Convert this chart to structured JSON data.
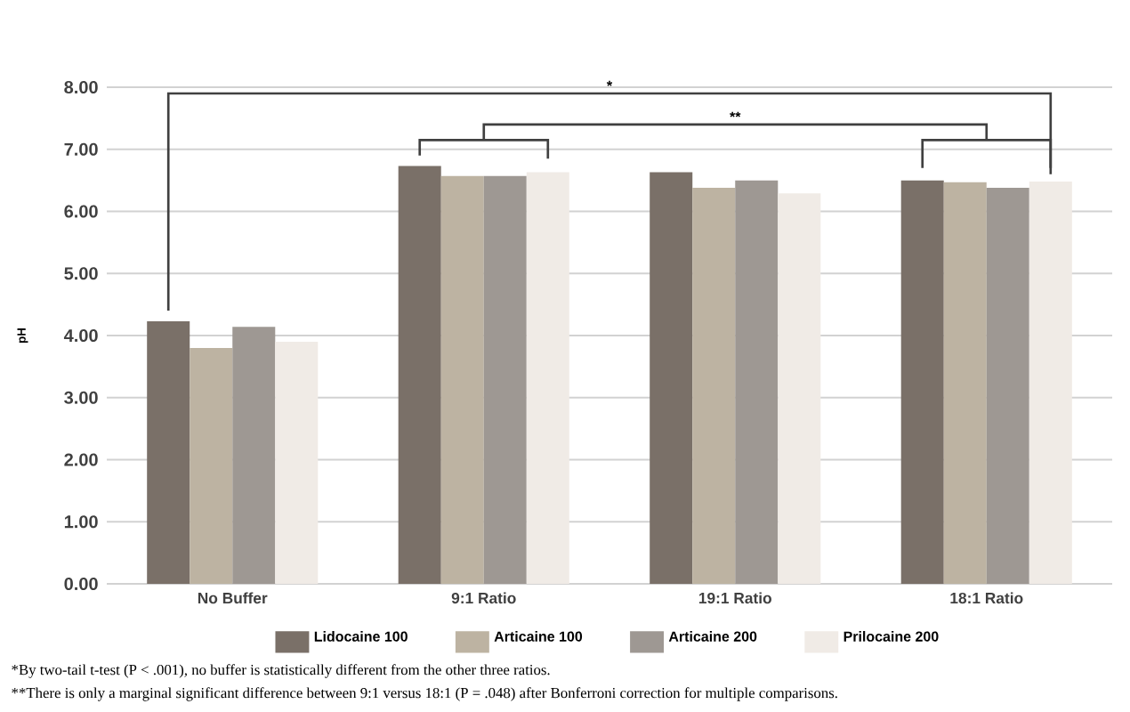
{
  "chart_data": {
    "type": "bar",
    "ylabel": "pH",
    "categories": [
      "No Buffer",
      "9:1 Ratio",
      "19:1 Ratio",
      "18:1 Ratio"
    ],
    "series": [
      {
        "name": "Lidocaine 100",
        "color": "#7a7068",
        "values": [
          4.23,
          6.73,
          6.63,
          6.5
        ]
      },
      {
        "name": "Articaine 100",
        "color": "#bdb3a2",
        "values": [
          3.8,
          6.57,
          6.38,
          6.47
        ]
      },
      {
        "name": "Articaine 200",
        "color": "#9e9893",
        "values": [
          4.14,
          6.57,
          6.5,
          6.38
        ]
      },
      {
        "name": "Prilocaine 200",
        "color": "#f0ebe6",
        "values": [
          3.9,
          6.63,
          6.29,
          6.48
        ]
      }
    ],
    "ylim": [
      0,
      8
    ],
    "yticks": [
      {
        "value": 0,
        "label": "0.00"
      },
      {
        "value": 1,
        "label": "1.00"
      },
      {
        "value": 2,
        "label": "2.00"
      },
      {
        "value": 3,
        "label": "3.00"
      },
      {
        "value": 4,
        "label": "4.00"
      },
      {
        "value": 5,
        "label": "5.00"
      },
      {
        "value": 6,
        "label": "6.00"
      },
      {
        "value": 7,
        "label": "7.00"
      },
      {
        "value": 8,
        "label": "8.00"
      }
    ],
    "grid": "y",
    "legend": "bottom",
    "annotations": [
      "*",
      "**",
      "*By two-tail t-test (P < .001), no buffer is statistically different from the other three ratios.",
      "**There is only a marginal significant difference between 9:1 versus 18:1 (P = .048) after Bonferroni correction for multiple comparisons."
    ]
  }
}
